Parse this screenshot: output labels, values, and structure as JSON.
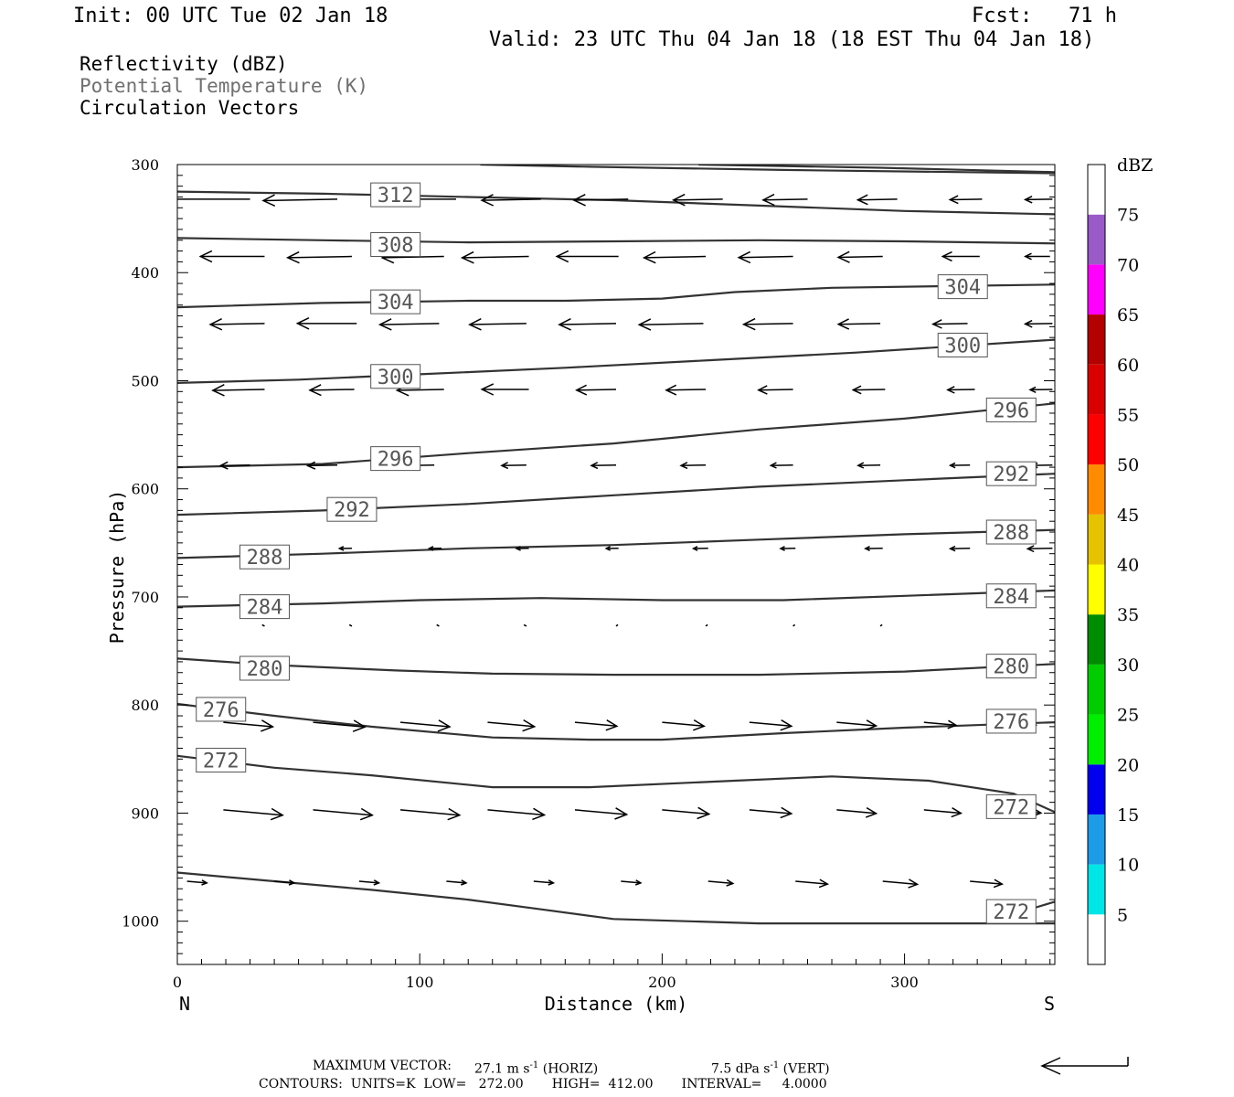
{
  "header": {
    "init": "Init: 00 UTC Tue 02 Jan 18",
    "fcst": "Fcst:   71 h",
    "valid": "Valid: 23 UTC Thu 04 Jan 18 (18 EST Thu 04 Jan 18)"
  },
  "fields": [
    {
      "label": "Reflectivity (dBZ)",
      "color": "#000000"
    },
    {
      "label": "Potential Temperature (K)",
      "color": "#707070"
    },
    {
      "label": "Circulation Vectors",
      "color": "#000000"
    }
  ],
  "footer": {
    "max_vector_label": "MAXIMUM VECTOR:",
    "max_horiz_value": "27.1 m s",
    "max_horiz_unit": "(HORIZ)",
    "max_vert_value": "7.5 dPa s",
    "max_vert_unit": "(VERT)",
    "exp": "-1",
    "contours": "CONTOURS:  UNITS=K  LOW=   272.00       HIGH=  412.00       INTERVAL=     4.0000"
  },
  "chart_data": {
    "type": "cross-section",
    "xlabel": "Distance (km)",
    "ylabel": "Pressure (hPa)",
    "xlim": [
      0,
      362
    ],
    "ylim": [
      1040,
      300
    ],
    "x_ticks": [
      0,
      100,
      200,
      300
    ],
    "y_ticks": [
      300,
      400,
      500,
      600,
      700,
      800,
      900,
      1000
    ],
    "endpoints": {
      "left": "N",
      "right": "S"
    },
    "contour_color": "#333333",
    "contours": [
      {
        "pts": [
          [
            125,
            300
          ],
          [
            170,
            302
          ],
          [
            250,
            305
          ],
          [
            362,
            308
          ]
        ]
      },
      {
        "pts": [
          [
            215,
            300
          ],
          [
            290,
            303
          ],
          [
            362,
            307
          ]
        ]
      },
      {
        "label": "312",
        "label_pos": [
          90,
          328
        ],
        "pts": [
          [
            0,
            325
          ],
          [
            60,
            327
          ],
          [
            120,
            330
          ],
          [
            180,
            333
          ],
          [
            240,
            338
          ],
          [
            300,
            343
          ],
          [
            362,
            346
          ]
        ]
      },
      {
        "label": "308",
        "label_pos": [
          90,
          374
        ],
        "pts": [
          [
            0,
            368
          ],
          [
            60,
            370
          ],
          [
            120,
            372
          ],
          [
            180,
            371
          ],
          [
            240,
            370
          ],
          [
            300,
            371
          ],
          [
            362,
            373
          ]
        ]
      },
      {
        "label": "304",
        "label_pos": [
          90,
          427
        ],
        "pts": [
          [
            0,
            432
          ],
          [
            60,
            428
          ],
          [
            120,
            426
          ],
          [
            160,
            426
          ],
          [
            200,
            424
          ],
          [
            230,
            418
          ],
          [
            270,
            414
          ],
          [
            362,
            411
          ]
        ]
      },
      {
        "label": "304",
        "label_pos": [
          324,
          413
        ],
        "hide": true
      },
      {
        "label": "300",
        "label_pos": [
          90,
          496
        ],
        "pts": [
          [
            0,
            502
          ],
          [
            50,
            499
          ],
          [
            100,
            494
          ],
          [
            160,
            488
          ],
          [
            220,
            481
          ],
          [
            280,
            474
          ],
          [
            362,
            462
          ]
        ]
      },
      {
        "label": "300",
        "label_pos": [
          324,
          467
        ],
        "hide": true
      },
      {
        "label": "296",
        "label_pos": [
          90,
          572
        ],
        "pts": [
          [
            0,
            580
          ],
          [
            60,
            577
          ],
          [
            120,
            567
          ],
          [
            180,
            558
          ],
          [
            240,
            545
          ],
          [
            300,
            535
          ],
          [
            362,
            521
          ]
        ]
      },
      {
        "label": "296",
        "label_pos": [
          344,
          527
        ],
        "hide": true
      },
      {
        "label": "292",
        "label_pos": [
          72,
          619
        ],
        "pts": [
          [
            0,
            624
          ],
          [
            60,
            620
          ],
          [
            120,
            614
          ],
          [
            180,
            606
          ],
          [
            240,
            598
          ],
          [
            300,
            592
          ],
          [
            362,
            586
          ]
        ]
      },
      {
        "label": "292",
        "label_pos": [
          344,
          586
        ],
        "hide": true
      },
      {
        "label": "288",
        "label_pos": [
          36,
          663
        ],
        "pts": [
          [
            0,
            664
          ],
          [
            60,
            660
          ],
          [
            120,
            655
          ],
          [
            180,
            652
          ],
          [
            240,
            647
          ],
          [
            300,
            642
          ],
          [
            362,
            638
          ]
        ]
      },
      {
        "label": "288",
        "label_pos": [
          344,
          640
        ],
        "hide": true
      },
      {
        "label": "284",
        "label_pos": [
          36,
          709
        ],
        "pts": [
          [
            0,
            709
          ],
          [
            60,
            706
          ],
          [
            100,
            703
          ],
          [
            150,
            701
          ],
          [
            200,
            703
          ],
          [
            250,
            703
          ],
          [
            300,
            699
          ],
          [
            362,
            694
          ]
        ]
      },
      {
        "label": "284",
        "label_pos": [
          344,
          699
        ],
        "hide": true
      },
      {
        "label": "280",
        "label_pos": [
          36,
          766
        ],
        "pts": [
          [
            0,
            757
          ],
          [
            40,
            763
          ],
          [
            90,
            768
          ],
          [
            130,
            771
          ],
          [
            180,
            772
          ],
          [
            240,
            772
          ],
          [
            300,
            769
          ],
          [
            362,
            762
          ]
        ]
      },
      {
        "label": "280",
        "label_pos": [
          344,
          764
        ],
        "hide": true
      },
      {
        "label": "276",
        "label_pos": [
          18,
          804
        ],
        "pts": [
          [
            0,
            799
          ],
          [
            40,
            810
          ],
          [
            80,
            820
          ],
          [
            130,
            830
          ],
          [
            170,
            832
          ],
          [
            200,
            832
          ],
          [
            250,
            826
          ],
          [
            300,
            821
          ],
          [
            362,
            816
          ]
        ]
      },
      {
        "label": "276",
        "label_pos": [
          344,
          815
        ],
        "hide": true
      },
      {
        "label": "272",
        "label_pos": [
          18,
          851
        ],
        "pts": [
          [
            0,
            847
          ],
          [
            40,
            858
          ],
          [
            80,
            865
          ],
          [
            130,
            876
          ],
          [
            170,
            876
          ],
          [
            230,
            870
          ],
          [
            270,
            866
          ],
          [
            310,
            870
          ],
          [
            345,
            882
          ],
          [
            362,
            899
          ]
        ]
      },
      {
        "label": "272",
        "label_pos": [
          344,
          894
        ],
        "hide": true
      },
      {
        "pts": [
          [
            0,
            955
          ],
          [
            40,
            963
          ],
          [
            80,
            971
          ],
          [
            120,
            980
          ],
          [
            150,
            989
          ],
          [
            180,
            998
          ],
          [
            240,
            1002
          ],
          [
            300,
            1002
          ],
          [
            362,
            1002
          ]
        ]
      },
      {
        "label": "272",
        "label_pos": [
          344,
          991
        ],
        "pts": [
          [
            340,
            996
          ],
          [
            350,
            990
          ],
          [
            362,
            982
          ]
        ]
      }
    ],
    "vector_rows": [
      {
        "p": 332,
        "vecs": [
          [
            30,
            -36,
            0
          ],
          [
            66,
            -30,
            1
          ],
          [
            115,
            -26,
            0
          ],
          [
            150,
            -24,
            1
          ],
          [
            186,
            -22,
            1
          ],
          [
            225,
            -20,
            1
          ],
          [
            260,
            -18,
            1
          ],
          [
            297,
            -16,
            1
          ],
          [
            332,
            -13,
            1
          ],
          [
            361,
            -11,
            1
          ]
        ]
      },
      {
        "p": 385,
        "vecs": [
          [
            36,
            -26,
            0
          ],
          [
            72,
            -26,
            1
          ],
          [
            110,
            -25,
            1
          ],
          [
            145,
            -27,
            1
          ],
          [
            182,
            -25,
            0
          ],
          [
            218,
            -25,
            1
          ],
          [
            254,
            -22,
            1
          ],
          [
            291,
            -18,
            1
          ],
          [
            331,
            -15,
            0
          ],
          [
            360,
            -10,
            0
          ]
        ]
      },
      {
        "p": 447,
        "vecs": [
          [
            36,
            -22,
            1
          ],
          [
            74,
            -24,
            0
          ],
          [
            108,
            -24,
            1
          ],
          [
            144,
            -23,
            1
          ],
          [
            181,
            -23,
            1
          ],
          [
            217,
            -26,
            1
          ],
          [
            254,
            -20,
            1
          ],
          [
            290,
            -17,
            1
          ],
          [
            326,
            -14,
            1
          ],
          [
            361,
            -11,
            1
          ]
        ]
      },
      {
        "p": 508,
        "vecs": [
          [
            36,
            -21,
            1
          ],
          [
            73,
            -18,
            1
          ],
          [
            110,
            -19,
            1
          ],
          [
            145,
            -19,
            0
          ],
          [
            181,
            -16,
            1
          ],
          [
            218,
            -16,
            1
          ],
          [
            254,
            -14,
            1
          ],
          [
            292,
            -13,
            1
          ],
          [
            329,
            -11,
            1
          ],
          [
            361,
            -9,
            1
          ]
        ]
      },
      {
        "p": 578,
        "vecs": [
          [
            30,
            -12,
            1
          ],
          [
            66,
            -12,
            1
          ],
          [
            106,
            -11,
            1
          ],
          [
            144,
            -10,
            1
          ],
          [
            181,
            -10,
            1
          ],
          [
            218,
            -10,
            1
          ],
          [
            254,
            -9,
            1
          ],
          [
            290,
            -9,
            1
          ],
          [
            327,
            -8,
            1
          ],
          [
            361,
            -8,
            1
          ]
        ]
      },
      {
        "p": 655,
        "vecs": [
          [
            35,
            -6,
            1
          ],
          [
            72,
            -5,
            1
          ],
          [
            109,
            -5,
            1
          ],
          [
            145,
            -5,
            1
          ],
          [
            182,
            -5,
            1
          ],
          [
            219,
            -6,
            1
          ],
          [
            255,
            -6,
            1
          ],
          [
            291,
            -7,
            1
          ],
          [
            327,
            -8,
            1
          ],
          [
            361,
            -10,
            1
          ]
        ]
      },
      {
        "p": 727,
        "vecs": [
          [
            0,
            -1,
            1
          ],
          [
            36,
            -1,
            1
          ],
          [
            72,
            -1,
            1
          ],
          [
            108,
            -1,
            1
          ],
          [
            144,
            -1,
            1
          ],
          [
            181,
            0,
            1
          ],
          [
            218,
            0,
            1
          ],
          [
            254,
            0,
            1
          ],
          [
            290,
            0,
            1
          ]
        ]
      },
      {
        "p": 816,
        "vecs": [
          [
            19,
            20,
            1
          ],
          [
            56,
            21,
            1
          ],
          [
            92,
            20,
            1
          ],
          [
            128,
            19,
            1
          ],
          [
            164,
            17,
            1
          ],
          [
            200,
            17,
            1
          ],
          [
            236,
            17,
            1
          ],
          [
            272,
            16,
            1
          ],
          [
            308,
            13,
            1
          ],
          [
            342,
            12,
            1
          ]
        ]
      },
      {
        "p": 897,
        "vecs": [
          [
            19,
            24,
            1
          ],
          [
            56,
            24,
            1
          ],
          [
            92,
            24,
            1
          ],
          [
            128,
            23,
            1
          ],
          [
            164,
            21,
            1
          ],
          [
            200,
            19,
            1
          ],
          [
            236,
            17,
            1
          ],
          [
            272,
            16,
            1
          ],
          [
            308,
            15,
            1
          ],
          [
            342,
            14,
            1
          ]
        ]
      },
      {
        "p": 963,
        "vecs": [
          [
            4,
            8,
            1
          ],
          [
            40,
            8,
            1
          ],
          [
            75,
            8,
            1
          ],
          [
            111,
            8,
            1
          ],
          [
            147,
            8,
            1
          ],
          [
            183,
            8,
            1
          ],
          [
            219,
            10,
            1
          ],
          [
            255,
            13,
            1
          ],
          [
            291,
            14,
            1
          ],
          [
            327,
            13,
            1
          ],
          [
            362,
            0,
            0
          ]
        ]
      }
    ],
    "colorbar": {
      "label": "dBZ",
      "levels": [
        "5",
        "10",
        "15",
        "20",
        "25",
        "30",
        "35",
        "40",
        "45",
        "50",
        "55",
        "60",
        "65",
        "70",
        "75"
      ],
      "colors": [
        "#ffffff",
        "#00e5e5",
        "#1e9be6",
        "#0000ee",
        "#00ee00",
        "#00cc00",
        "#008c00",
        "#ffff00",
        "#e6c300",
        "#ff8c00",
        "#ff0000",
        "#d90000",
        "#b30000",
        "#ff00ff",
        "#9a5ac8",
        "#ffffff"
      ]
    }
  }
}
